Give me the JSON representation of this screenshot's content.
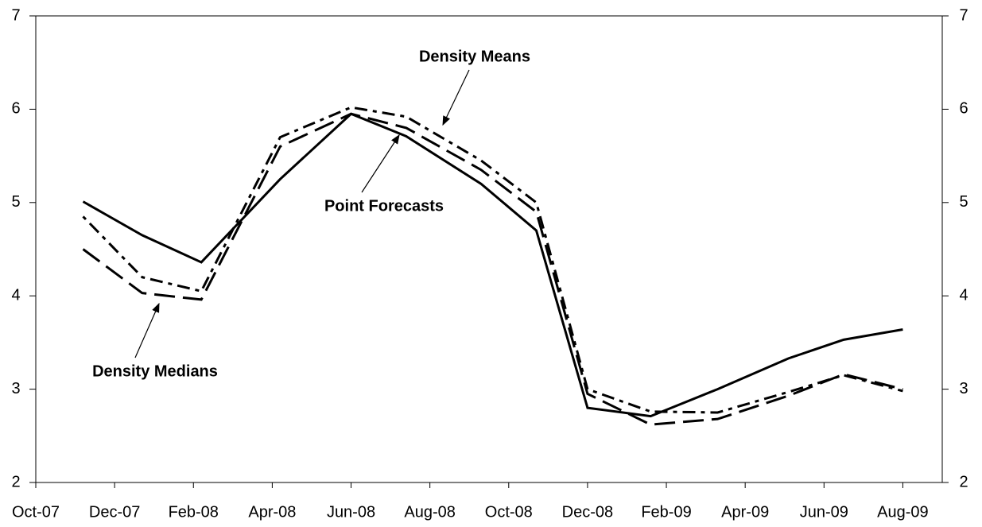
{
  "chart_data": {
    "type": "line",
    "x": [
      1.2,
      2.7,
      4.2,
      6.2,
      8.0,
      9.4,
      11.3,
      12.7,
      14.0,
      15.6,
      17.3,
      19.1,
      20.5,
      22.0
    ],
    "xlim": [
      0,
      23
    ],
    "xticks": [
      {
        "value": 0,
        "label": "Oct-07"
      },
      {
        "value": 2,
        "label": "Dec-07"
      },
      {
        "value": 4,
        "label": "Feb-08"
      },
      {
        "value": 6,
        "label": "Apr-08"
      },
      {
        "value": 8,
        "label": "Jun-08"
      },
      {
        "value": 10,
        "label": "Aug-08"
      },
      {
        "value": 12,
        "label": "Oct-08"
      },
      {
        "value": 14,
        "label": "Dec-08"
      },
      {
        "value": 16,
        "label": "Feb-09"
      },
      {
        "value": 18,
        "label": "Apr-09"
      },
      {
        "value": 20,
        "label": "Jun-09"
      },
      {
        "value": 22,
        "label": "Aug-09"
      }
    ],
    "ylim": [
      2,
      7
    ],
    "yticks": [
      2,
      3,
      4,
      5,
      6,
      7
    ],
    "y2lim": [
      2,
      7
    ],
    "y2ticks": [
      2,
      3,
      4,
      5,
      6,
      7
    ],
    "series": [
      {
        "name": "Point Forecasts",
        "color": "#000000",
        "style": "solid",
        "values": [
          5.01,
          4.65,
          4.36,
          5.25,
          5.95,
          5.71,
          5.2,
          4.7,
          2.8,
          2.71,
          3.0,
          3.33,
          3.53,
          3.64
        ]
      },
      {
        "name": "Density Medians",
        "color": "#000000",
        "style": "dashed",
        "values": [
          4.5,
          4.03,
          3.96,
          5.6,
          5.95,
          5.8,
          5.35,
          4.9,
          2.95,
          2.62,
          2.68,
          2.93,
          3.16,
          3.0
        ]
      },
      {
        "name": "Density Means",
        "color": "#000000",
        "style": "dashdot",
        "values": [
          4.85,
          4.2,
          4.05,
          5.7,
          6.02,
          5.92,
          5.45,
          5.0,
          3.0,
          2.76,
          2.75,
          2.97,
          3.15,
          2.98
        ]
      }
    ],
    "annotations": [
      "Density Means",
      "Point Forecasts",
      "Density Medians"
    ]
  }
}
